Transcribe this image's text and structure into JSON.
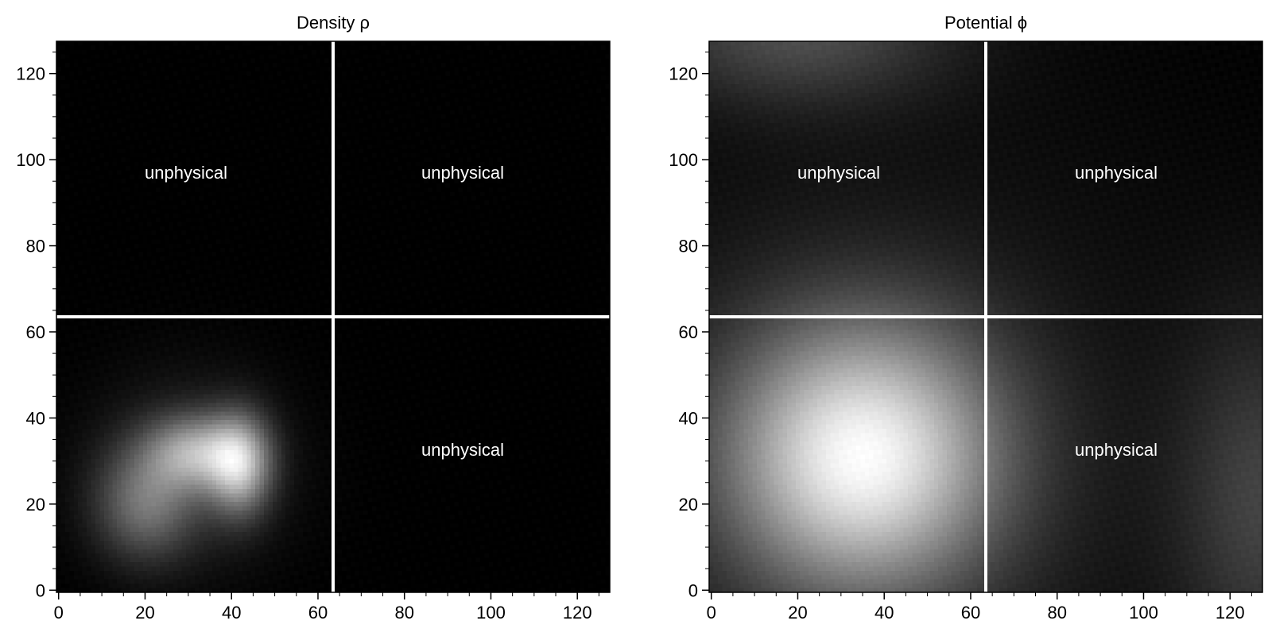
{
  "chart_data": [
    {
      "type": "heatmap",
      "title": "Density ρ",
      "colormap": "gray",
      "xlim": [
        0,
        127
      ],
      "ylim": [
        0,
        127
      ],
      "xticks": [
        0,
        20,
        40,
        60,
        80,
        100,
        120
      ],
      "yticks": [
        0,
        20,
        40,
        60,
        80,
        100,
        120
      ],
      "divider_lines": {
        "x": 63.5,
        "y": 63.5
      },
      "quadrant_labels": [
        {
          "text": "unphysical",
          "x": 30,
          "y": 96
        },
        {
          "text": "unphysical",
          "x": 94,
          "y": 96
        },
        {
          "text": "unphysical",
          "x": 94,
          "y": 32
        }
      ],
      "blobs": [
        {
          "cx": 20,
          "cy": 20,
          "sx": 8,
          "sy": 9,
          "amp": 0.45
        },
        {
          "cx": 32,
          "cy": 32,
          "sx": 8,
          "sy": 6,
          "amp": 0.65
        },
        {
          "cx": 42,
          "cy": 29,
          "sx": 5,
          "sy": 8,
          "amp": 0.75
        },
        {
          "cx": 30,
          "cy": 28,
          "sx": 16,
          "sy": 16,
          "amp": 0.18
        }
      ]
    },
    {
      "type": "heatmap",
      "title": "Potential ϕ",
      "colormap": "gray",
      "xlim": [
        0,
        127
      ],
      "ylim": [
        0,
        127
      ],
      "xticks": [
        0,
        20,
        40,
        60,
        80,
        100,
        120
      ],
      "yticks": [
        0,
        20,
        40,
        60,
        80,
        100,
        120
      ],
      "divider_lines": {
        "x": 63.5,
        "y": 63.5
      },
      "quadrant_labels": [
        {
          "text": "unphysical",
          "x": 30,
          "y": 96
        },
        {
          "text": "unphysical",
          "x": 94,
          "y": 96
        },
        {
          "text": "unphysical",
          "x": 94,
          "y": 32
        }
      ],
      "blobs": [
        {
          "cx": 35,
          "cy": 31,
          "sx": 22,
          "sy": 22,
          "amp": 0.95
        },
        {
          "cx": 128,
          "cy": 20,
          "sx": 14,
          "sy": 30,
          "amp": 0.25
        },
        {
          "cx": 20,
          "cy": 130,
          "sx": 25,
          "sy": 12,
          "amp": 0.3
        },
        {
          "cx": 35,
          "cy": 31,
          "sx": 60,
          "sy": 60,
          "amp": 0.12
        }
      ]
    }
  ]
}
